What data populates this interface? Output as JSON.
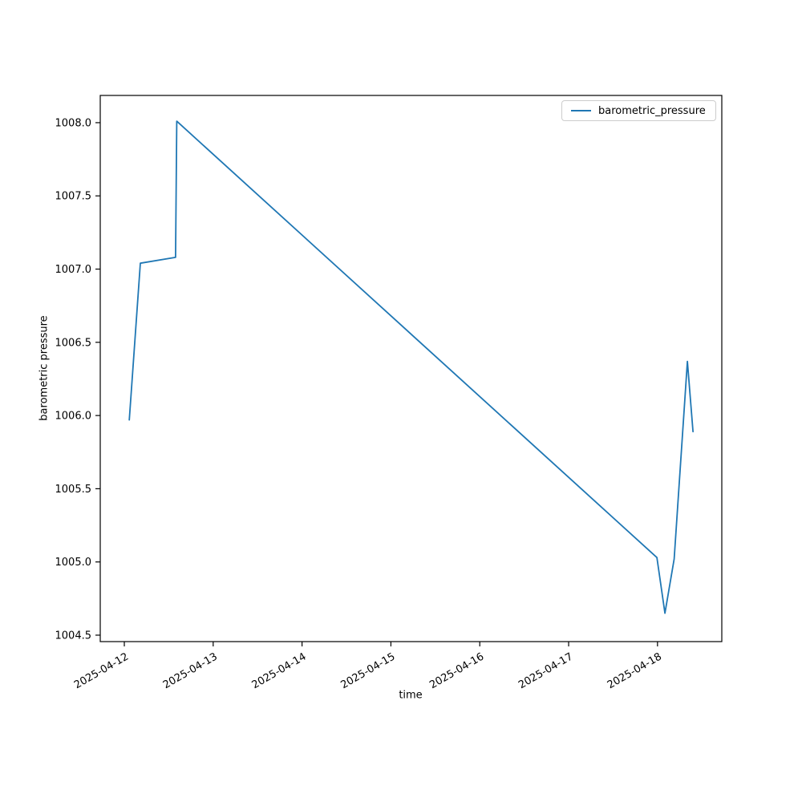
{
  "figure": {
    "background_color": "#ffffff"
  },
  "chart_data": {
    "type": "line",
    "title": "",
    "xlabel": "time",
    "ylabel": "barometric pressure",
    "legend": {
      "label": "barometric_pressure",
      "position": "upper right"
    },
    "line_color": "#1f77b4",
    "axis_color": "#000000",
    "grid": false,
    "x_ticks": [
      "2025-04-12",
      "2025-04-13",
      "2025-04-14",
      "2025-04-15",
      "2025-04-16",
      "2025-04-17",
      "2025-04-18"
    ],
    "x_tick_rotation": 30,
    "y_ticks": [
      "1004.5",
      "1005.0",
      "1005.5",
      "1006.0",
      "1006.5",
      "1007.0",
      "1007.5",
      "1008.0"
    ],
    "xlim": [
      "2025-04-11 17:30",
      "2025-04-18 17:22"
    ],
    "ylim": [
      1004.456,
      1008.186
    ],
    "series": [
      {
        "name": "barometric_pressure",
        "points": [
          [
            "2025-04-12 01:20",
            1005.97
          ],
          [
            "2025-04-12 04:20",
            1007.04
          ],
          [
            "2025-04-12 13:50",
            1007.08
          ],
          [
            "2025-04-12 14:10",
            1008.01
          ],
          [
            "2025-04-17 23:50",
            1005.03
          ],
          [
            "2025-04-18 02:00",
            1004.65
          ],
          [
            "2025-04-18 04:30",
            1005.02
          ],
          [
            "2025-04-18 08:05",
            1006.37
          ],
          [
            "2025-04-18 09:35",
            1005.89
          ]
        ]
      }
    ]
  }
}
